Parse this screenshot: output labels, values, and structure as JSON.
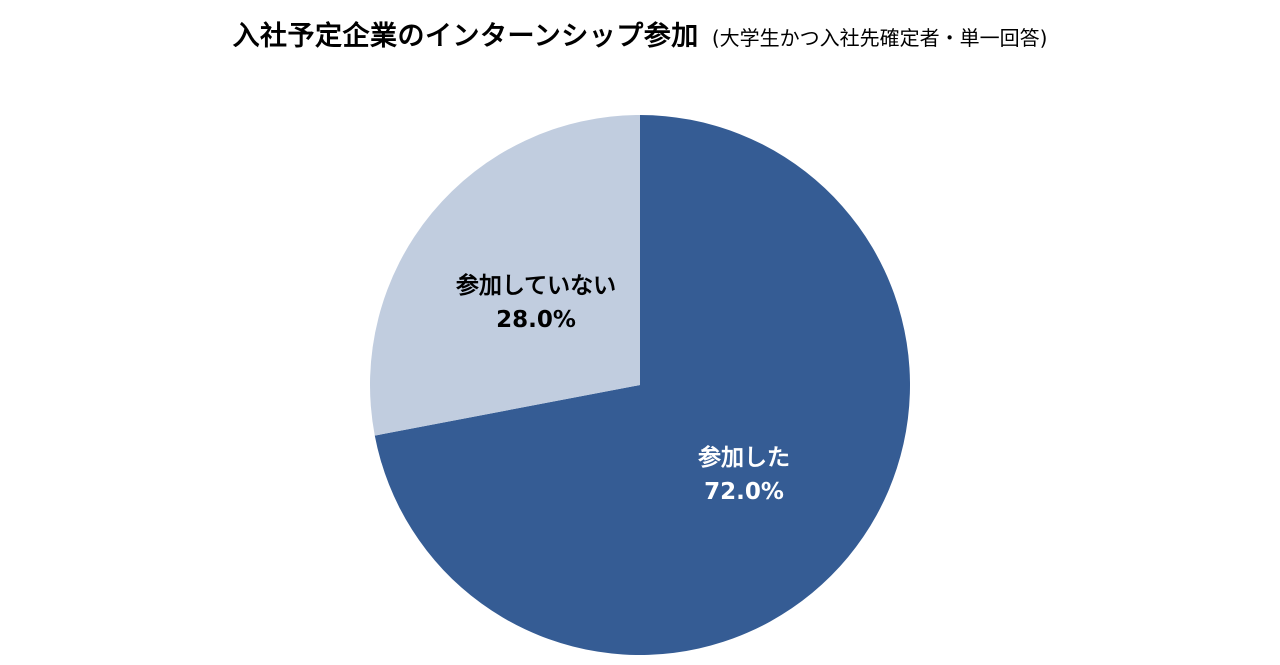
{
  "chart_data": {
    "type": "pie",
    "title": "入社予定企業のインターンシップ参加",
    "subtitle": "(大学生かつ入社先確定者・単一回答)",
    "start_angle_deg": 0,
    "direction": "clockwise",
    "slices": [
      {
        "label": "参加した",
        "value": 72.0,
        "value_label": "72.0%",
        "color": "#355C94",
        "text_color": "#ffffff"
      },
      {
        "label": "参加していない",
        "value": 28.0,
        "value_label": "28.0%",
        "color": "#C1CDDF",
        "text_color": "#000000"
      }
    ]
  }
}
